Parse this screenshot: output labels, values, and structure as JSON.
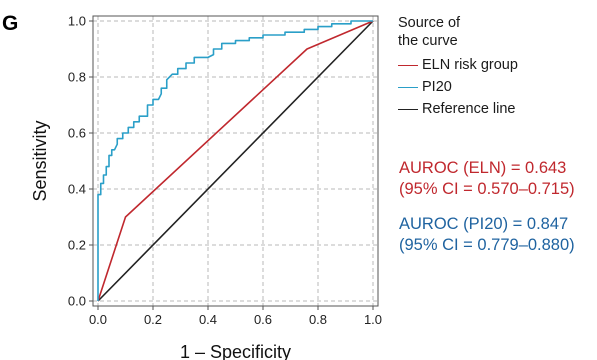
{
  "panel_label": "G",
  "colors": {
    "eln": "#c0282e",
    "pi20": "#2a9fc8",
    "reference": "#222222",
    "annot_eln": "#c0282e",
    "annot_pi20": "#1f63a0"
  },
  "chart_data": {
    "type": "line",
    "xlabel": "1 – Specificity",
    "ylabel": "Sensitivity",
    "xlim": [
      0,
      1
    ],
    "ylim": [
      0,
      1
    ],
    "x_ticks": [
      0.0,
      0.2,
      0.4,
      0.6,
      0.8,
      1.0
    ],
    "y_ticks": [
      0.0,
      0.2,
      0.4,
      0.6,
      0.8,
      1.0
    ],
    "x_tick_labels": [
      "0.0",
      "0.2",
      "0.4",
      "0.6",
      "0.8",
      "1.0"
    ],
    "y_tick_labels": [
      "0.0",
      "0.2",
      "0.4",
      "0.6",
      "0.8",
      "1.0"
    ],
    "grid": true,
    "legend": {
      "title_line1": "Source of",
      "title_line2": "the curve",
      "placement": "right"
    },
    "series": [
      {
        "name": "ELN risk group",
        "color_key": "eln",
        "x": [
          0.0,
          0.1,
          0.76,
          1.0
        ],
        "y": [
          0.0,
          0.3,
          0.9,
          1.0
        ]
      },
      {
        "name": "PI20",
        "color_key": "pi20",
        "x": [
          0.0,
          0.0,
          0.01,
          0.01,
          0.02,
          0.02,
          0.03,
          0.03,
          0.04,
          0.04,
          0.05,
          0.05,
          0.06,
          0.07,
          0.07,
          0.09,
          0.09,
          0.11,
          0.11,
          0.13,
          0.13,
          0.15,
          0.15,
          0.18,
          0.18,
          0.2,
          0.2,
          0.22,
          0.23,
          0.23,
          0.25,
          0.25,
          0.27,
          0.29,
          0.29,
          0.32,
          0.32,
          0.35,
          0.35,
          0.4,
          0.42,
          0.42,
          0.45,
          0.45,
          0.5,
          0.5,
          0.55,
          0.55,
          0.6,
          0.6,
          0.68,
          0.68,
          0.75,
          0.75,
          0.8,
          0.8,
          0.85,
          0.85,
          0.92,
          0.92,
          0.97,
          0.97,
          1.0
        ],
        "y": [
          0.0,
          0.38,
          0.38,
          0.42,
          0.42,
          0.45,
          0.45,
          0.48,
          0.48,
          0.52,
          0.52,
          0.54,
          0.54,
          0.56,
          0.58,
          0.58,
          0.6,
          0.6,
          0.62,
          0.62,
          0.64,
          0.64,
          0.66,
          0.66,
          0.7,
          0.7,
          0.72,
          0.72,
          0.74,
          0.76,
          0.76,
          0.79,
          0.81,
          0.81,
          0.83,
          0.83,
          0.85,
          0.85,
          0.87,
          0.87,
          0.88,
          0.9,
          0.9,
          0.92,
          0.92,
          0.93,
          0.93,
          0.94,
          0.94,
          0.95,
          0.95,
          0.96,
          0.96,
          0.97,
          0.97,
          0.98,
          0.98,
          0.99,
          0.99,
          1.0,
          1.0,
          1.0,
          1.0
        ]
      },
      {
        "name": "Reference line",
        "color_key": "reference",
        "x": [
          0.0,
          1.0
        ],
        "y": [
          0.0,
          1.0
        ]
      }
    ],
    "annotations": [
      {
        "line1": "AUROC (ELN) = 0.643",
        "line2": "(95% CI = 0.570–0.715)",
        "color_key": "annot_eln"
      },
      {
        "line1": "AUROC (PI20) = 0.847",
        "line2": "(95% CI = 0.779–0.880)",
        "color_key": "annot_pi20"
      }
    ]
  }
}
